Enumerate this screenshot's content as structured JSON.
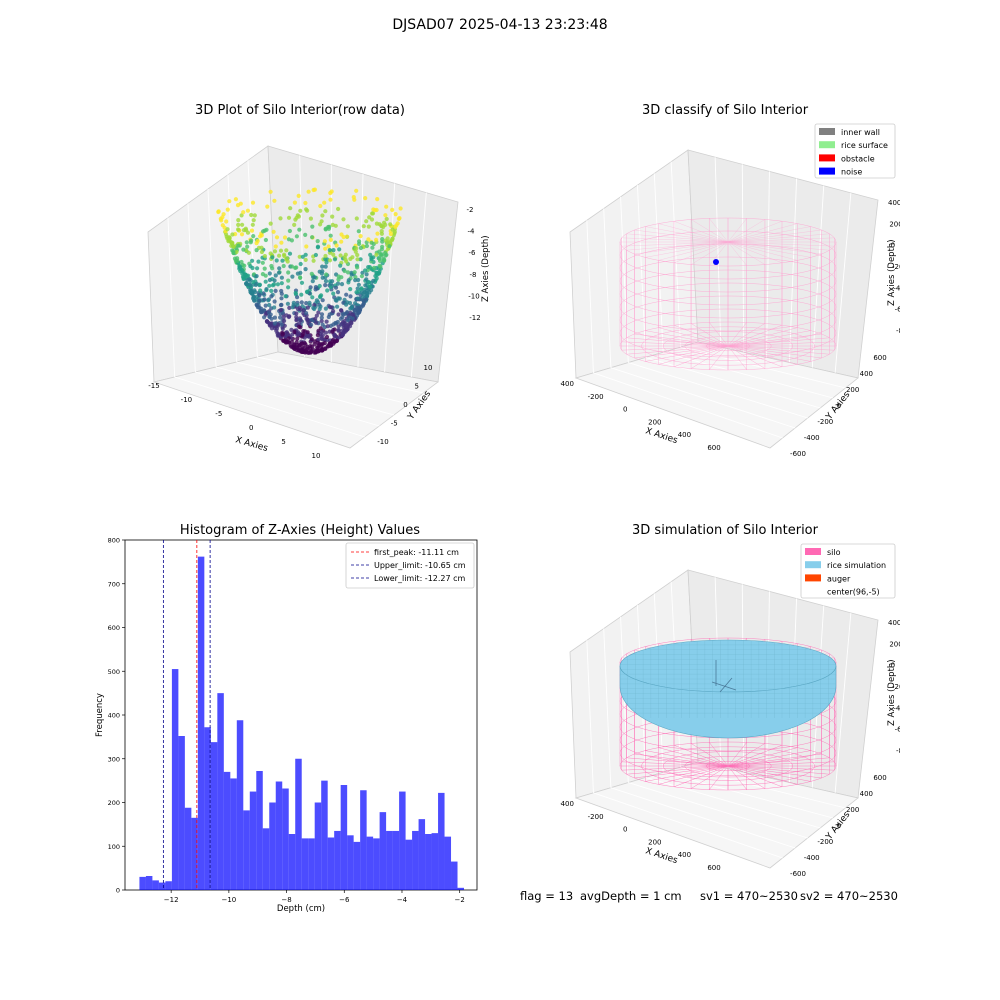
{
  "figure": {
    "suptitle": "DJSAD07 2025-04-13 23:23:48"
  },
  "colors": {
    "hist_bar": "#0000ff",
    "first_peak": "#ff0000",
    "limits": "#00008b",
    "silo_wire": "#ff69b4",
    "rice_sim": "#87ceeb"
  },
  "plots": {
    "raw": {
      "title": "3D Plot of Silo Interior(row data)",
      "xlabel": "X Axies",
      "ylabel": "Y Axies",
      "zlabel": "Z Axies (Depth)",
      "xticks": [
        "-15",
        "-10",
        "-5",
        "0",
        "5",
        "10"
      ],
      "yticks": [
        "10",
        "5",
        "0",
        "-5",
        "-10"
      ],
      "zticks": [
        "-2",
        "-4",
        "-6",
        "-8",
        "-10",
        "-12"
      ],
      "colormap": "viridis"
    },
    "classify": {
      "title": "3D classify of Silo Interior",
      "xlabel": "X Axies",
      "ylabel": "Y Axies",
      "zlabel": "Z Axies (Depth)",
      "xticks": [
        "-400",
        "-200",
        "0",
        "200",
        "400",
        "600"
      ],
      "yticks": [
        "600",
        "400",
        "200",
        "0",
        "-200",
        "-400",
        "-600"
      ],
      "zticks": [
        "400",
        "200",
        "0",
        "-200",
        "-400",
        "-600",
        "-800"
      ],
      "legend": [
        {
          "label": "inner wall",
          "color": "#808080"
        },
        {
          "label": "rice surface",
          "color": "#90ee90"
        },
        {
          "label": "obstacle",
          "color": "#ff0000"
        },
        {
          "label": "noise",
          "color": "#0000ff"
        }
      ]
    },
    "simulation": {
      "title": "3D simulation of Silo Interior",
      "xlabel": "X Axies",
      "ylabel": "Y Axies",
      "zlabel": "Z Axies (Depth)",
      "xticks": [
        "-400",
        "-200",
        "0",
        "200",
        "400",
        "600"
      ],
      "yticks": [
        "600",
        "400",
        "200",
        "0",
        "-200",
        "-400",
        "-600"
      ],
      "zticks": [
        "400",
        "200",
        "0",
        "-200",
        "-400",
        "-600",
        "-800"
      ],
      "legend": [
        {
          "label": "silo",
          "color": "#ff69b4"
        },
        {
          "label": "rice simulation",
          "color": "#87ceeb"
        },
        {
          "label": "auger",
          "color": "#ff4500"
        },
        {
          "label": "center(96,-5)",
          "color": "#ffffff"
        }
      ]
    }
  },
  "chart_data": {
    "type": "bar",
    "title": "Histogram of Z-Axies (Height) Values",
    "xlabel": "Depth (cm)",
    "ylabel": "Frequency",
    "xlim": [
      -13.6,
      -1.4
    ],
    "ylim": [
      0,
      800
    ],
    "xticks": [
      -12,
      -10,
      -8,
      -6,
      -4,
      -2
    ],
    "xtick_labels": [
      "−12",
      "−10",
      "−8",
      "−6",
      "−4",
      "−2"
    ],
    "yticks": [
      0,
      100,
      200,
      300,
      400,
      500,
      600,
      700,
      800
    ],
    "bin_start": -13.1,
    "bin_width": 0.225,
    "values": [
      30,
      32,
      22,
      17,
      20,
      505,
      352,
      188,
      165,
      762,
      372,
      338,
      450,
      270,
      255,
      388,
      182,
      225,
      272,
      141,
      200,
      248,
      232,
      128,
      300,
      118,
      118,
      200,
      250,
      120,
      135,
      240,
      125,
      110,
      228,
      122,
      118,
      178,
      135,
      135,
      225,
      115,
      135,
      162,
      128,
      130,
      222,
      122,
      65,
      5
    ],
    "lines": [
      {
        "label": "first_peak: -11.11 cm",
        "x": -11.11,
        "color": "#ff0000"
      },
      {
        "label": "Upper_limit: -10.65 cm",
        "x": -10.65,
        "color": "#00008b"
      },
      {
        "label": "Lower_limit: -12.27 cm",
        "x": -12.27,
        "color": "#00008b"
      }
    ],
    "legend_position": "upper right",
    "grid": false
  },
  "footer": {
    "flag": "flag = 13",
    "avg": "avgDepth = 1 cm",
    "sv1": "sv1 = 470~2530",
    "sv2": "sv2 = 470~2530"
  }
}
